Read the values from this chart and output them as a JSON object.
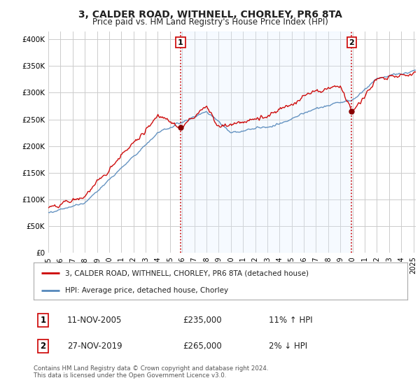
{
  "title": "3, CALDER ROAD, WITHNELL, CHORLEY, PR6 8TA",
  "subtitle": "Price paid vs. HM Land Registry's House Price Index (HPI)",
  "title_fontsize": 10,
  "subtitle_fontsize": 8.5,
  "background_color": "#ffffff",
  "grid_color": "#cccccc",
  "plot_bg_color": "#ffffff",
  "yticks": [
    0,
    50000,
    100000,
    150000,
    200000,
    250000,
    300000,
    350000,
    400000
  ],
  "ytick_labels": [
    "£0",
    "£50K",
    "£100K",
    "£150K",
    "£200K",
    "£250K",
    "£300K",
    "£350K",
    "£400K"
  ],
  "ylim": [
    0,
    415000
  ],
  "xlim_start": 1995.0,
  "xlim_end": 2025.2,
  "sale1_date": 2005.87,
  "sale1_price": 235000,
  "sale1_label": "1",
  "sale2_date": 2019.92,
  "sale2_price": 265000,
  "sale2_label": "2",
  "red_line_color": "#cc0000",
  "blue_line_color": "#5588bb",
  "shade_color": "#ddeeff",
  "vline1_color": "#cc0000",
  "vline2_color": "#cc0000",
  "legend_label_red": "3, CALDER ROAD, WITHNELL, CHORLEY, PR6 8TA (detached house)",
  "legend_label_blue": "HPI: Average price, detached house, Chorley",
  "table_rows": [
    {
      "num": "1",
      "date": "11-NOV-2005",
      "price": "£235,000",
      "hpi": "11% ↑ HPI"
    },
    {
      "num": "2",
      "date": "27-NOV-2019",
      "price": "£265,000",
      "hpi": "2% ↓ HPI"
    }
  ],
  "footnote": "Contains HM Land Registry data © Crown copyright and database right 2024.\nThis data is licensed under the Open Government Licence v3.0.",
  "xtick_years": [
    1995,
    1996,
    1997,
    1998,
    1999,
    2000,
    2001,
    2002,
    2003,
    2004,
    2005,
    2006,
    2007,
    2008,
    2009,
    2010,
    2011,
    2012,
    2013,
    2014,
    2015,
    2016,
    2017,
    2018,
    2019,
    2020,
    2021,
    2022,
    2023,
    2024,
    2025
  ]
}
